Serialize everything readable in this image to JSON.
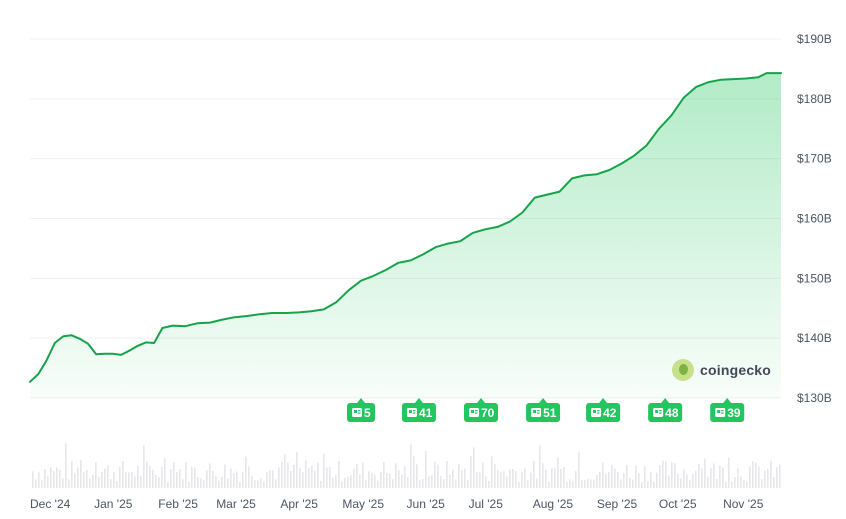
{
  "chart_data": {
    "type": "area",
    "title": "",
    "xlabel": "",
    "ylabel": "",
    "ylim": [
      130,
      190
    ],
    "y_ticks": [
      "$190B",
      "$180B",
      "$170B",
      "$160B",
      "$150B",
      "$140B",
      "$130B"
    ],
    "y_tick_values": [
      190,
      180,
      170,
      160,
      150,
      140,
      130
    ],
    "x_ticks": [
      "Dec '24",
      "Jan '25",
      "Feb '25",
      "Mar '25",
      "Apr '25",
      "May '25",
      "Jun '25",
      "Jul '25",
      "Aug '25",
      "Sep '25",
      "Oct '25",
      "Nov '25"
    ],
    "x_tick_dates": [
      "2024-12-01",
      "2025-01-01",
      "2025-02-01",
      "2025-03-01",
      "2025-04-01",
      "2025-05-01",
      "2025-06-01",
      "2025-07-01",
      "2025-08-01",
      "2025-09-01",
      "2025-10-01",
      "2025-11-01"
    ],
    "x_range": [
      "2024-12-01",
      "2025-11-29"
    ],
    "grid": true,
    "line_color": "#16a34a",
    "fill_color": "#22c55e",
    "series": [
      {
        "x": [
          "2024-12-01",
          "2024-12-05",
          "2024-12-09",
          "2024-12-13",
          "2024-12-17",
          "2024-12-21",
          "2024-12-25",
          "2024-12-29",
          "2025-01-02",
          "2025-01-06",
          "2025-01-10",
          "2025-01-14",
          "2025-01-18",
          "2025-01-22",
          "2025-01-26",
          "2025-01-30",
          "2025-02-03",
          "2025-02-08",
          "2025-02-14",
          "2025-02-20",
          "2025-02-26",
          "2025-03-04",
          "2025-03-10",
          "2025-03-16",
          "2025-03-22",
          "2025-03-28",
          "2025-04-04",
          "2025-04-10",
          "2025-04-16",
          "2025-04-22",
          "2025-04-28",
          "2025-05-04",
          "2025-05-10",
          "2025-05-16",
          "2025-05-22",
          "2025-05-28",
          "2025-06-03",
          "2025-06-09",
          "2025-06-15",
          "2025-06-21",
          "2025-06-27",
          "2025-07-03",
          "2025-07-09",
          "2025-07-15",
          "2025-07-21",
          "2025-07-27",
          "2025-08-02",
          "2025-08-08",
          "2025-08-14",
          "2025-08-20",
          "2025-08-26",
          "2025-09-01",
          "2025-09-07",
          "2025-09-13",
          "2025-09-19",
          "2025-09-25",
          "2025-10-01",
          "2025-10-07",
          "2025-10-13",
          "2025-10-19",
          "2025-10-25",
          "2025-10-31",
          "2025-11-06",
          "2025-11-12",
          "2025-11-18",
          "2025-11-22",
          "2025-11-29"
        ],
        "values": [
          132.7,
          134.0,
          136.3,
          139.2,
          140.3,
          140.5,
          139.9,
          139.1,
          137.3,
          137.4,
          137.4,
          137.2,
          137.9,
          138.7,
          139.3,
          139.2,
          141.7,
          142.1,
          142.0,
          142.5,
          142.6,
          143.1,
          143.5,
          143.7,
          144.0,
          144.2,
          144.2,
          144.3,
          144.5,
          144.8,
          146.0,
          148.0,
          149.6,
          150.4,
          151.4,
          152.6,
          153.0,
          154.0,
          155.2,
          155.8,
          156.2,
          157.6,
          158.2,
          158.6,
          159.5,
          161.0,
          163.5,
          164.0,
          164.5,
          166.7,
          167.2,
          167.4,
          168.1,
          169.2,
          170.5,
          172.2,
          175.0,
          177.2,
          180.2,
          182.0,
          182.8,
          183.2,
          183.3,
          183.4,
          183.6,
          184.3,
          184.3
        ]
      }
    ],
    "annotations": [
      {
        "date": "2025-05-10",
        "label": "5"
      },
      {
        "date": "2025-06-07",
        "label": "41"
      },
      {
        "date": "2025-07-07",
        "label": "70"
      },
      {
        "date": "2025-08-06",
        "label": "51"
      },
      {
        "date": "2025-09-04",
        "label": "42"
      },
      {
        "date": "2025-10-04",
        "label": "48"
      },
      {
        "date": "2025-11-03",
        "label": "39"
      }
    ]
  },
  "icons": {
    "annotation": "news-icon",
    "brand": "gecko-logo-icon"
  },
  "brand": {
    "name": "coingecko"
  }
}
